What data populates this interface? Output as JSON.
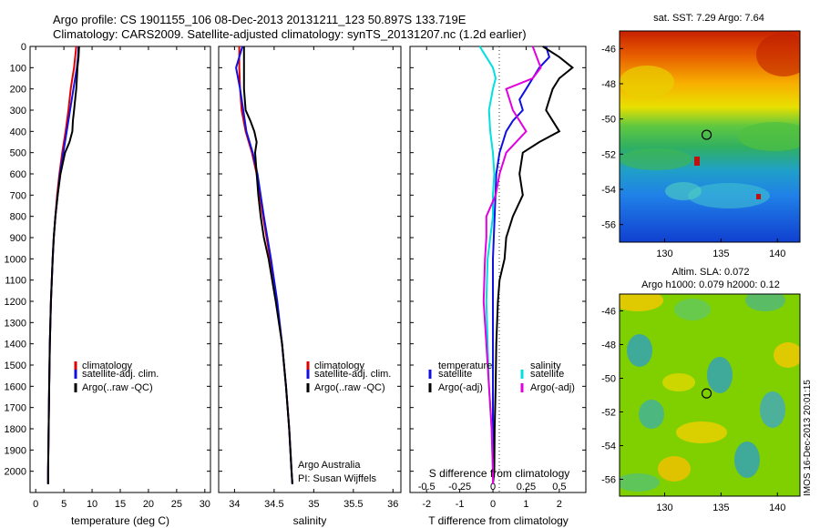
{
  "header": {
    "line1": "Argo profile: CS 1901155_106 08-Dec-2013 20131211_123 50.897S 133.719E",
    "line2": "Climatology: CARS2009. Satellite-adjusted climatology: synTS_20131207.nc (1.2d earlier)"
  },
  "depth_ticks": [
    "0",
    "100",
    "200",
    "300",
    "400",
    "500",
    "600",
    "700",
    "800",
    "900",
    "1000",
    "1100",
    "1200",
    "1300",
    "1400",
    "1500",
    "1600",
    "1700",
    "1800",
    "1900",
    "2000"
  ],
  "credit": {
    "line1": "Argo Australia",
    "line2": "PI: Susan Wijffels"
  },
  "imos_stamp": "IMOS 16-Dec-2013 20:01:15",
  "colors": {
    "climatology": "#e00000",
    "satellite": "#1010e0",
    "argo": "#000000",
    "sal_satellite": "#00e0e0",
    "sal_argo": "#e000e0"
  },
  "chart_data": [
    {
      "type": "line",
      "xlabel": "temperature (deg C)",
      "ylabel": "",
      "xlim": [
        -1,
        31
      ],
      "ylim": [
        2100,
        0
      ],
      "xticks": [
        0,
        5,
        10,
        15,
        20,
        25,
        30
      ],
      "legend": [
        "climatology",
        "satellite-adj. clim.",
        "Argo(..raw -QC)"
      ],
      "series": [
        {
          "name": "climatology",
          "color": "#e00000",
          "depth": [
            0,
            50,
            100,
            150,
            200,
            300,
            400,
            500,
            600,
            700,
            800,
            900,
            1000,
            1200,
            1400,
            1600,
            1800,
            2000,
            2060
          ],
          "values": [
            7.2,
            7.0,
            6.8,
            6.5,
            6.2,
            5.8,
            5.3,
            4.7,
            4.2,
            3.8,
            3.5,
            3.2,
            3.0,
            2.7,
            2.5,
            2.4,
            2.3,
            2.2,
            2.2
          ]
        },
        {
          "name": "satellite-adj. clim.",
          "color": "#1010e0",
          "depth": [
            0,
            50,
            100,
            150,
            200,
            300,
            400,
            500,
            600,
            700,
            800,
            900,
            1000,
            1200,
            1400,
            1600,
            1800,
            2000,
            2060
          ],
          "values": [
            7.6,
            7.5,
            7.3,
            7.0,
            6.7,
            6.1,
            5.5,
            4.9,
            4.3,
            3.9,
            3.5,
            3.2,
            3.0,
            2.7,
            2.5,
            2.4,
            2.3,
            2.2,
            2.2
          ]
        },
        {
          "name": "Argo(..raw -QC)",
          "color": "#000000",
          "depth": [
            0,
            50,
            100,
            150,
            200,
            250,
            300,
            350,
            400,
            450,
            500,
            600,
            700,
            800,
            900,
            1000,
            1200,
            1400,
            1600,
            1800,
            2000,
            2060
          ],
          "values": [
            7.7,
            7.6,
            7.4,
            7.3,
            7.2,
            7.0,
            6.8,
            6.6,
            6.5,
            6.0,
            5.2,
            4.4,
            3.9,
            3.5,
            3.2,
            3.0,
            2.7,
            2.5,
            2.4,
            2.3,
            2.2,
            2.2
          ]
        }
      ]
    },
    {
      "type": "line",
      "xlabel": "salinity",
      "xlim": [
        33.8,
        36.1
      ],
      "ylim": [
        2100,
        0
      ],
      "xticks": [
        34,
        34.5,
        35,
        35.5,
        36
      ],
      "xtick_labels": [
        "34",
        "34.5",
        "35",
        "35.5",
        "36"
      ],
      "legend": [
        "climatology",
        "satellite-adj. clim.",
        "Argo(..raw -QC)"
      ],
      "series": [
        {
          "name": "climatology",
          "color": "#e00000",
          "depth": [
            0,
            100,
            200,
            300,
            400,
            500,
            600,
            800,
            1000,
            1200,
            1400,
            1600,
            1800,
            2000,
            2060
          ],
          "values": [
            34.06,
            34.06,
            34.07,
            34.09,
            34.14,
            34.22,
            34.28,
            34.36,
            34.45,
            34.53,
            34.6,
            34.65,
            34.69,
            34.72,
            34.73
          ]
        },
        {
          "name": "satellite-adj. clim.",
          "color": "#1010e0",
          "depth": [
            0,
            50,
            100,
            200,
            300,
            400,
            500,
            600,
            800,
            1000,
            1200,
            1400,
            1600,
            1800,
            2000,
            2060
          ],
          "values": [
            34.1,
            34.06,
            34.02,
            34.07,
            34.11,
            34.15,
            34.23,
            34.29,
            34.37,
            34.46,
            34.54,
            34.6,
            34.65,
            34.69,
            34.72,
            34.73
          ]
        },
        {
          "name": "Argo(..raw -QC)",
          "color": "#000000",
          "depth": [
            0,
            100,
            200,
            300,
            350,
            400,
            450,
            500,
            600,
            700,
            800,
            900,
            1000,
            1200,
            1400,
            1600,
            1800,
            2000,
            2060
          ],
          "values": [
            34.12,
            34.12,
            34.12,
            34.14,
            34.2,
            34.25,
            34.28,
            34.26,
            34.28,
            34.3,
            34.33,
            34.37,
            34.43,
            34.52,
            34.6,
            34.65,
            34.69,
            34.72,
            34.73
          ]
        }
      ]
    },
    {
      "type": "line",
      "xlabel": "T difference from climatology",
      "xlabel2": "S difference from climatology",
      "xlim": [
        -2.5,
        2.8
      ],
      "ylim": [
        2100,
        0
      ],
      "xticks": [
        -2,
        -1,
        0,
        1,
        2
      ],
      "xticks_S": [
        -0.5,
        -0.25,
        0,
        0.25,
        0.5
      ],
      "legend_left": {
        "title": "temperature",
        "items": [
          "satellite",
          "Argo(-adj)"
        ]
      },
      "legend_right": {
        "title": "salinity",
        "items": [
          "satellite",
          "Argo(-adj)"
        ]
      },
      "series": [
        {
          "name": "satellite",
          "quantity": "temperature",
          "color": "#1010e0",
          "depth": [
            0,
            50,
            100,
            150,
            200,
            250,
            300,
            350,
            400,
            500,
            600,
            800,
            1000,
            1400,
            1800,
            2060
          ],
          "values": [
            1.6,
            1.7,
            1.4,
            1.2,
            1.0,
            0.8,
            0.9,
            0.6,
            0.4,
            0.2,
            0.1,
            0.05,
            0.0,
            0.0,
            0.0,
            0.0
          ]
        },
        {
          "name": "Argo(-adj)",
          "quantity": "temperature",
          "color": "#000000",
          "depth": [
            0,
            50,
            100,
            150,
            200,
            250,
            300,
            350,
            400,
            450,
            500,
            600,
            700,
            800,
            900,
            1000,
            1100,
            1200,
            1400,
            1600,
            1800,
            2000,
            2060
          ],
          "values": [
            1.5,
            2.0,
            2.4,
            2.0,
            1.8,
            1.7,
            1.6,
            1.8,
            2.0,
            1.4,
            0.9,
            0.8,
            0.9,
            0.6,
            0.4,
            0.35,
            0.2,
            0.15,
            0.1,
            0.08,
            0.05,
            0.04,
            0.0
          ]
        },
        {
          "name": "satellite",
          "quantity": "salinity",
          "color": "#00e0e0",
          "depth": [
            0,
            50,
            100,
            150,
            200,
            300,
            400,
            500,
            600,
            700,
            800,
            900,
            1000,
            1200,
            1400,
            1600,
            1800,
            2000,
            2060
          ],
          "values": [
            -0.1,
            -0.05,
            0.0,
            0.02,
            0.0,
            -0.03,
            -0.02,
            0.0,
            0.01,
            0.0,
            0.0,
            -0.02,
            -0.04,
            -0.05,
            -0.04,
            -0.03,
            -0.01,
            0.0,
            0.0
          ]
        },
        {
          "name": "Argo(-adj)",
          "quantity": "salinity",
          "color": "#e000e0",
          "depth": [
            0,
            50,
            100,
            150,
            200,
            300,
            400,
            500,
            600,
            700,
            800,
            900,
            1000,
            1200,
            1400,
            1600,
            1800,
            2000,
            2060
          ],
          "values": [
            0.3,
            0.33,
            0.36,
            0.3,
            0.1,
            0.15,
            0.25,
            0.1,
            0.05,
            0.02,
            -0.05,
            -0.05,
            -0.06,
            -0.07,
            -0.05,
            -0.03,
            -0.01,
            0.0,
            0.0
          ]
        }
      ]
    },
    {
      "type": "heatmap",
      "title": "sat. SST: 7.29 Argo: 7.64",
      "xlim": [
        126,
        142
      ],
      "ylim": [
        -57,
        -45
      ],
      "xticks": [
        130,
        135,
        140
      ],
      "yticks": [
        -46,
        -48,
        -50,
        -52,
        -54,
        -56
      ],
      "marker": {
        "lon": 133.72,
        "lat": -50.9
      }
    },
    {
      "type": "heatmap",
      "title": "Altim. SLA: 0.072",
      "subtitle": "Argo h1000: 0.079 h2000: 0.12",
      "xlim": [
        126,
        142
      ],
      "ylim": [
        -57,
        -45
      ],
      "xticks": [
        130,
        135,
        140
      ],
      "yticks": [
        -46,
        -48,
        -50,
        -52,
        -54,
        -56
      ],
      "marker": {
        "lon": 133.72,
        "lat": -50.9
      }
    }
  ]
}
